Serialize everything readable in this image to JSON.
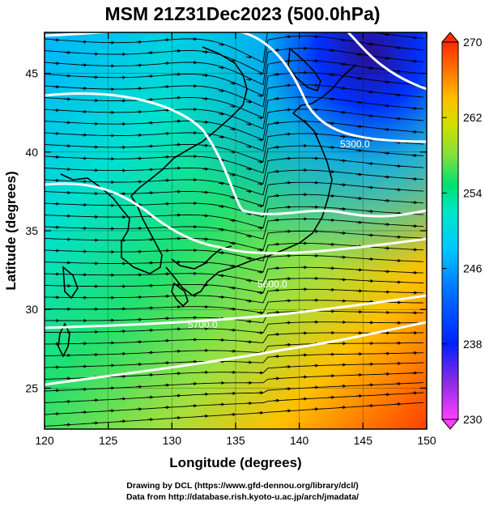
{
  "title": "MSM 21Z31Dec2023 (500.0hPa)",
  "x_axis": {
    "label": "Longitude (degrees)",
    "range": [
      120,
      150
    ],
    "ticks": [
      120,
      125,
      130,
      135,
      140,
      145,
      150
    ]
  },
  "y_axis": {
    "label": "Latitude  (degrees)",
    "range": [
      22.4,
      47.6
    ],
    "ticks": [
      25,
      30,
      35,
      40,
      45
    ]
  },
  "colorbar": {
    "range": [
      230,
      270
    ],
    "ticks": [
      230,
      238,
      246,
      254,
      262,
      270
    ],
    "colors": [
      "#ff40ff",
      "#8a2be2",
      "#0020ff",
      "#0078ff",
      "#00c8ff",
      "#00e6c8",
      "#00e070",
      "#40e040",
      "#a0e040",
      "#d0e000",
      "#ffd000",
      "#ff9a00",
      "#ff5a00",
      "#ff2a00"
    ]
  },
  "contours": [
    {
      "label": "5300.0"
    },
    {
      "label": "5600.0"
    },
    {
      "label": "5700.0"
    }
  ],
  "footer": {
    "line1": "Drawing by DCL (https://www.gfd-dennou.org/library/dcl/)",
    "line2": "Data from http://database.rish.kyoto-u.ac.jp/arch/jmadata/"
  }
}
